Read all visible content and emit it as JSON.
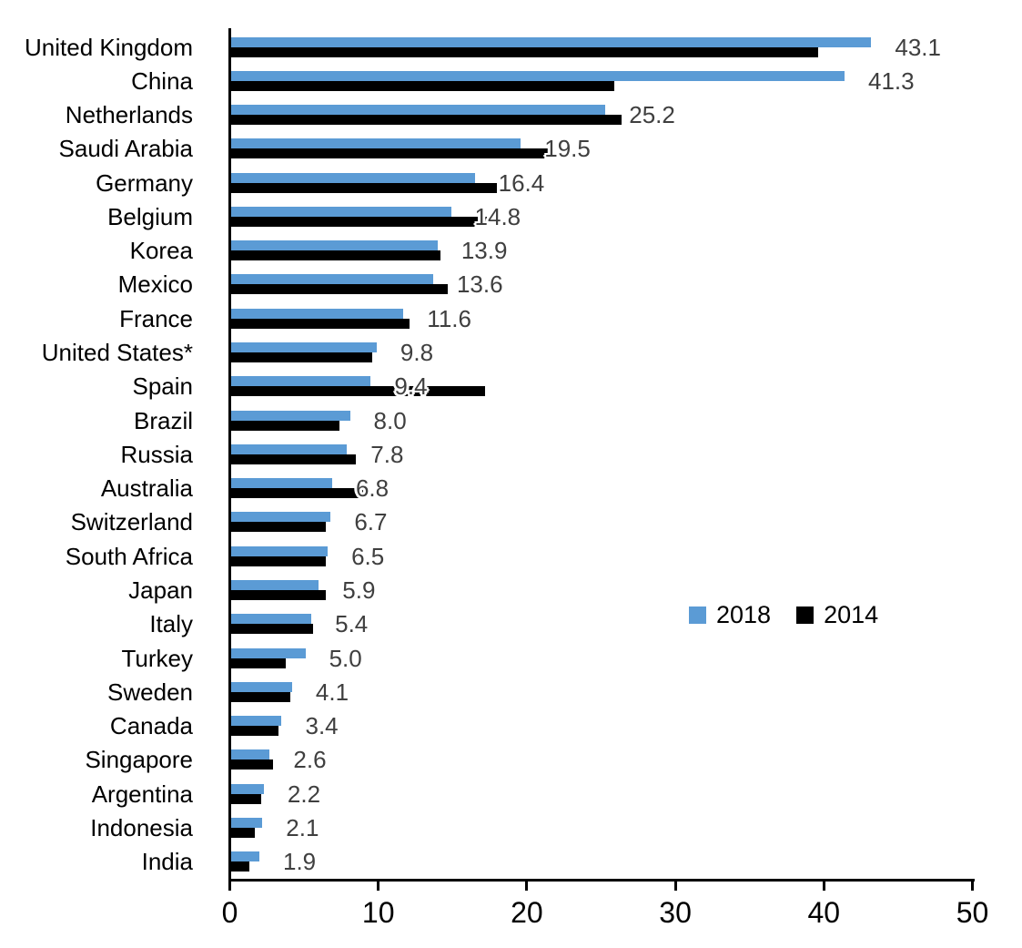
{
  "chart_data": {
    "type": "bar",
    "orientation": "horizontal",
    "title": "",
    "xlabel": "",
    "ylabel": "",
    "xlim": [
      0,
      50
    ],
    "x_ticks": [
      0,
      10,
      20,
      30,
      40,
      50
    ],
    "grid": false,
    "legend_position": "middle-right",
    "categories": [
      "United Kingdom",
      "China",
      "Netherlands",
      "Saudi Arabia",
      "Germany",
      "Belgium",
      "Korea",
      "Mexico",
      "France",
      "United States*",
      "Spain",
      "Brazil",
      "Russia",
      "Australia",
      "Switzerland",
      "South Africa",
      "Japan",
      "Italy",
      "Turkey",
      "Sweden",
      "Canada",
      "Singapore",
      "Argentina",
      "Indonesia",
      "India"
    ],
    "series": [
      {
        "name": "2018",
        "color": "#5B9BD5",
        "values": [
          43.1,
          41.3,
          25.2,
          19.5,
          16.4,
          14.8,
          13.9,
          13.6,
          11.6,
          9.8,
          9.4,
          8.0,
          7.8,
          6.8,
          6.7,
          6.5,
          5.9,
          5.4,
          5.0,
          4.1,
          3.4,
          2.6,
          2.2,
          2.1,
          1.9
        ]
      },
      {
        "name": "2014",
        "color": "#000000",
        "values": [
          39.5,
          25.8,
          26.3,
          21.5,
          17.9,
          17.2,
          14.1,
          14.6,
          12.0,
          9.5,
          17.1,
          7.3,
          8.4,
          9.0,
          6.4,
          6.4,
          6.4,
          5.5,
          3.7,
          4.0,
          3.2,
          2.8,
          2.0,
          1.6,
          1.2
        ]
      }
    ],
    "value_labels": [
      "43.1",
      "41.3",
      "25.2",
      "19.5",
      "16.4",
      "14.8",
      "13.9",
      "13.6",
      "11.6",
      "9.8",
      "9.4",
      "8.0",
      "7.8",
      "6.8",
      "6.7",
      "6.5",
      "5.9",
      "5.4",
      "5.0",
      "4.1",
      "3.4",
      "2.6",
      "2.2",
      "2.1",
      "1.9"
    ],
    "value_label_color": "#3F3F3F",
    "axis_color": "#000000"
  }
}
